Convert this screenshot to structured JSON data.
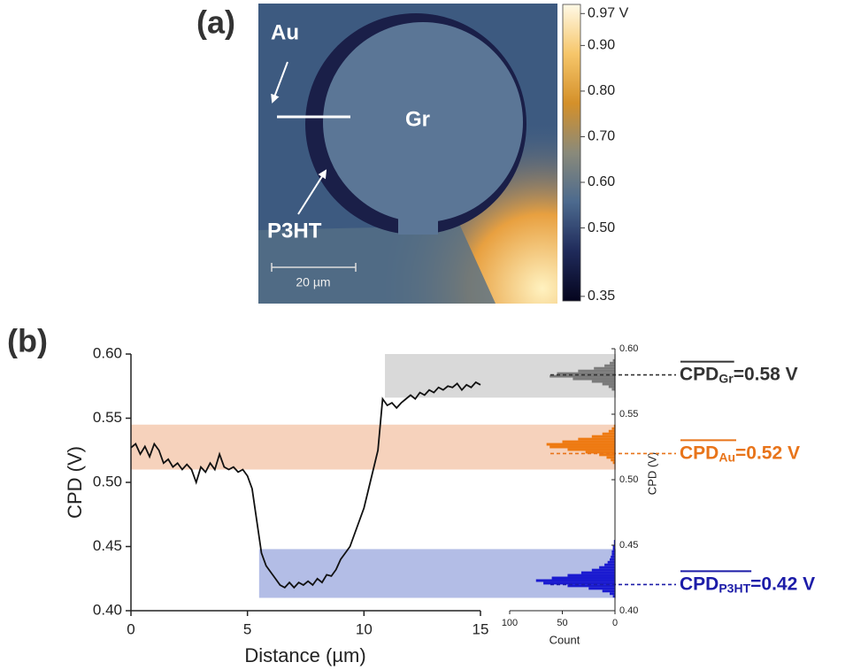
{
  "panel_labels": [
    "(a)",
    "(b)"
  ],
  "image": {
    "au": "Au",
    "gr": "Gr",
    "p3ht": "P3HT",
    "scale_bar": "20 µm"
  },
  "chart_data": [
    {
      "type": "colorbar",
      "colors": [
        "#05051e",
        "#1f2a5a",
        "#4c6a8e",
        "#8a8a7a",
        "#d4902a",
        "#f6c66a",
        "#fff9e6"
      ],
      "ylim": [
        0.34,
        0.99
      ],
      "yticks": [
        {
          "value": 0.97,
          "label": "0.97 V"
        },
        {
          "value": 0.9,
          "label": "0.90"
        },
        {
          "value": 0.8,
          "label": "0.80"
        },
        {
          "value": 0.7,
          "label": "0.70"
        },
        {
          "value": 0.6,
          "label": "0.60"
        },
        {
          "value": 0.5,
          "label": "0.50"
        },
        {
          "value": 0.35,
          "label": "0.35"
        }
      ]
    },
    {
      "type": "line",
      "xlabel": "Distance (µm)",
      "ylabel": "CPD (V)",
      "xlim": [
        0,
        15
      ],
      "xticks": [
        0,
        5,
        10,
        15
      ],
      "ylim": [
        0.4,
        0.6
      ],
      "yticks": [
        {
          "value": 0.4,
          "label": "0.40"
        },
        0.45,
        {
          "value": 0.5,
          "label": "0.50"
        },
        0.55,
        {
          "value": 0.6,
          "label": "0.60"
        }
      ],
      "color": "#111111",
      "x": [
        0,
        0.2,
        0.4,
        0.6,
        0.8,
        1.0,
        1.2,
        1.4,
        1.6,
        1.8,
        2.0,
        2.2,
        2.4,
        2.6,
        2.8,
        3.0,
        3.2,
        3.4,
        3.6,
        3.8,
        4.0,
        4.2,
        4.4,
        4.6,
        4.8,
        5.0,
        5.2,
        5.4,
        5.6,
        5.8,
        6.0,
        6.2,
        6.4,
        6.6,
        6.8,
        7.0,
        7.2,
        7.4,
        7.6,
        7.8,
        8.0,
        8.2,
        8.4,
        8.6,
        8.8,
        9.0,
        9.2,
        9.4,
        9.6,
        9.8,
        10.0,
        10.2,
        10.4,
        10.6,
        10.8,
        11.0,
        11.2,
        11.4,
        11.6,
        11.8,
        12.0,
        12.2,
        12.4,
        12.6,
        12.8,
        13.0,
        13.2,
        13.4,
        13.6,
        13.8,
        14.0,
        14.2,
        14.4,
        14.6,
        14.8,
        15.0
      ],
      "values": [
        0.527,
        0.53,
        0.522,
        0.528,
        0.52,
        0.53,
        0.525,
        0.515,
        0.518,
        0.512,
        0.515,
        0.51,
        0.514,
        0.51,
        0.5,
        0.512,
        0.508,
        0.515,
        0.51,
        0.522,
        0.512,
        0.51,
        0.512,
        0.508,
        0.51,
        0.505,
        0.495,
        0.47,
        0.445,
        0.435,
        0.43,
        0.425,
        0.42,
        0.418,
        0.422,
        0.418,
        0.422,
        0.42,
        0.423,
        0.42,
        0.425,
        0.422,
        0.428,
        0.427,
        0.432,
        0.44,
        0.445,
        0.45,
        0.46,
        0.47,
        0.48,
        0.495,
        0.51,
        0.525,
        0.565,
        0.56,
        0.562,
        0.558,
        0.562,
        0.565,
        0.568,
        0.565,
        0.57,
        0.568,
        0.572,
        0.57,
        0.574,
        0.572,
        0.575,
        0.574,
        0.577,
        0.572,
        0.576,
        0.574,
        0.578,
        0.576
      ],
      "bands": [
        {
          "color": "#d9d9d9",
          "x_start": 10.9,
          "ylim": [
            0.566,
            0.6
          ]
        },
        {
          "color": "#f6d2bc",
          "x_start": 0,
          "ylim": [
            0.51,
            0.545
          ]
        },
        {
          "color": "#b3bde6",
          "x_start": 5.5,
          "ylim": [
            0.41,
            0.448
          ]
        }
      ]
    },
    {
      "type": "histogram",
      "xlabel": "Count",
      "ylabel": "CPD (V)",
      "xlim": [
        100,
        0
      ],
      "xticks": [
        100,
        50,
        0
      ],
      "ylim": [
        0.4,
        0.6
      ],
      "yticks": [
        {
          "value": 0.4,
          "label": "0.40"
        },
        0.45,
        {
          "value": 0.5,
          "label": "0.50"
        },
        0.55,
        {
          "value": 0.6,
          "label": "0.60"
        }
      ],
      "series": [
        {
          "color": "#7a7a7a",
          "bins": [
            0.568,
            0.57,
            0.572,
            0.574,
            0.576,
            0.578,
            0.58,
            0.582,
            0.584,
            0.586,
            0.588,
            0.59,
            0.592
          ],
          "values": [
            3,
            6,
            12,
            22,
            40,
            62,
            55,
            35,
            20,
            10,
            5,
            2
          ],
          "mean": 0.58,
          "label": {
            "main": "CPD",
            "sub": "Gr",
            "rest": "=0.58 V",
            "color": "#333333"
          }
        },
        {
          "color": "#ee7a12",
          "bins": [
            0.512,
            0.514,
            0.516,
            0.518,
            0.52,
            0.522,
            0.524,
            0.526,
            0.528,
            0.53,
            0.532,
            0.534,
            0.536,
            0.538,
            0.54,
            0.542
          ],
          "values": [
            2,
            4,
            8,
            15,
            28,
            45,
            62,
            65,
            50,
            35,
            22,
            12,
            6,
            3,
            1
          ],
          "mean": 0.52,
          "label": {
            "main": "CPD",
            "sub": "Au",
            "rest": "=0.52 V",
            "color": "#e8741a"
          }
        },
        {
          "color": "#1a1ad0",
          "bins": [
            0.41,
            0.412,
            0.414,
            0.416,
            0.418,
            0.42,
            0.422,
            0.424,
            0.426,
            0.428,
            0.43,
            0.432,
            0.434,
            0.436,
            0.438,
            0.44,
            0.442,
            0.444,
            0.446,
            0.448,
            0.45,
            0.452,
            0.454
          ],
          "values": [
            2,
            5,
            12,
            25,
            45,
            68,
            75,
            60,
            45,
            32,
            22,
            15,
            10,
            7,
            5,
            4,
            3,
            3,
            2,
            2,
            1,
            1
          ],
          "mean": 0.42,
          "label": {
            "main": "CPD",
            "sub": "P3HT",
            "rest": "=0.42 V",
            "color": "#1c1ca8"
          }
        }
      ]
    }
  ]
}
